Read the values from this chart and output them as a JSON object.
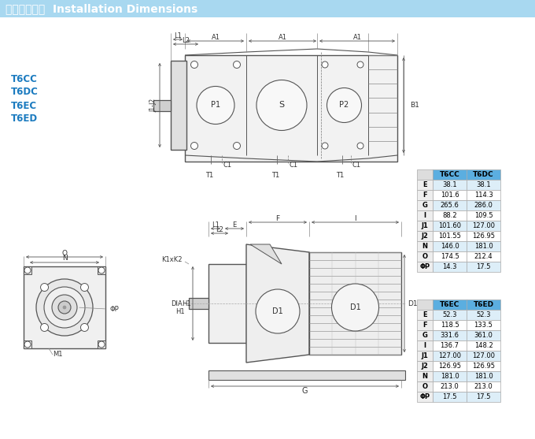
{
  "title_chinese": "安装连接尺寸",
  "title_english": "Installation Dimensions",
  "title_bg_color": "#6ab4e8",
  "title_bg_color2": "#b8dcf5",
  "model_labels": [
    "T6CC",
    "T6DC",
    "T6EC",
    "T6ED"
  ],
  "model_color": "#1a7abf",
  "table1_header": [
    "",
    "T6CC",
    "T6DC"
  ],
  "table1_rows": [
    [
      "E",
      "38.1",
      "38.1"
    ],
    [
      "F",
      "101.6",
      "114.3"
    ],
    [
      "G",
      "265.6",
      "286.0"
    ],
    [
      "I",
      "88.2",
      "109.5"
    ],
    [
      "J1\nJ2",
      "101.60\n101.55",
      "127.00\n126.95"
    ],
    [
      "N",
      "146.0",
      "181.0"
    ],
    [
      "O",
      "174.5",
      "212.4"
    ],
    [
      "ΦP",
      "14.3",
      "17.5"
    ]
  ],
  "table1_rows_flat": [
    [
      "E",
      "38.1",
      "38.1"
    ],
    [
      "F",
      "101.6",
      "114.3"
    ],
    [
      "G",
      "265.6",
      "286.0"
    ],
    [
      "I",
      "88.2",
      "109.5"
    ],
    [
      "J1",
      "101.60",
      "127.00"
    ],
    [
      "J2",
      "101.55",
      "126.95"
    ],
    [
      "N",
      "146.0",
      "181.0"
    ],
    [
      "O",
      "174.5",
      "212.4"
    ],
    [
      "ΦP",
      "14.3",
      "17.5"
    ]
  ],
  "table2_rows_flat": [
    [
      "E",
      "52.3",
      "52.3"
    ],
    [
      "F",
      "118.5",
      "133.5"
    ],
    [
      "G",
      "331.6",
      "361.0"
    ],
    [
      "I",
      "136.7",
      "148.2"
    ],
    [
      "J1",
      "127.00",
      "127.00"
    ],
    [
      "J2",
      "126.95",
      "126.95"
    ],
    [
      "N",
      "181.0",
      "181.0"
    ],
    [
      "O",
      "213.0",
      "213.0"
    ],
    [
      "ΦP",
      "17.5",
      "17.5"
    ]
  ],
  "table2_header": [
    "",
    "T6EC",
    "T6ED"
  ],
  "table_header_bg": "#5baee0",
  "table_alt_bg": "#ddeef8",
  "table_white_bg": "#ffffff",
  "line_color": "#555555",
  "bg_color": "#ffffff"
}
